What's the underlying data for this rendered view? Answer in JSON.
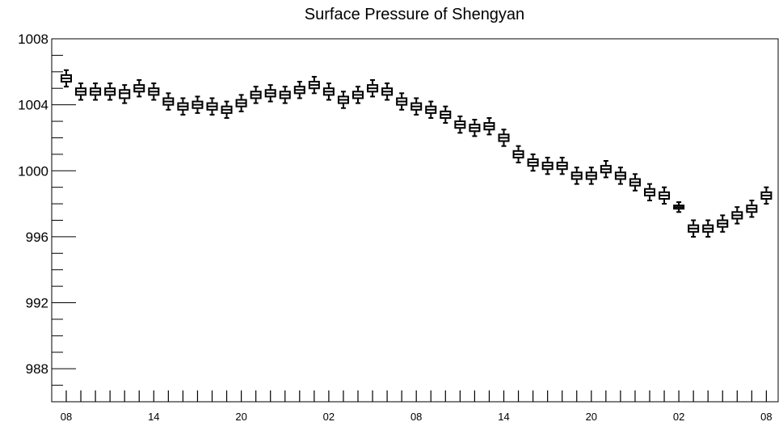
{
  "chart_data": {
    "type": "boxplot",
    "title": "Surface Pressure of Shengyan",
    "xlabel": "",
    "ylabel": "",
    "ylim": [
      986,
      1008
    ],
    "yticks": [
      988,
      992,
      996,
      1000,
      1004,
      1008
    ],
    "xtick_labels": [
      "08",
      "14",
      "20",
      "02",
      "08",
      "14",
      "20",
      "02",
      "08"
    ],
    "xtick_label_steps": [
      0,
      6,
      12,
      18,
      24,
      30,
      36,
      42,
      48
    ],
    "grid": false,
    "series": [
      {
        "medians": [
          1005.6,
          1004.8,
          1004.8,
          1004.8,
          1004.7,
          1005.0,
          1004.8,
          1004.2,
          1003.9,
          1004.0,
          1003.9,
          1003.7,
          1004.1,
          1004.6,
          1004.7,
          1004.6,
          1004.9,
          1005.2,
          1004.8,
          1004.3,
          1004.6,
          1005.0,
          1004.8,
          1004.2,
          1003.9,
          1003.7,
          1003.4,
          1002.8,
          1002.6,
          1002.7,
          1002.0,
          1001.0,
          1000.5,
          1000.3,
          1000.3,
          999.7,
          999.7,
          1000.1,
          999.7,
          999.3,
          998.7,
          998.5,
          997.8,
          996.5,
          996.5,
          996.8,
          997.3,
          997.7,
          998.5
        ],
        "q1": [
          1005.4,
          1004.6,
          1004.6,
          1004.6,
          1004.4,
          1004.8,
          1004.6,
          1004.0,
          1003.7,
          1003.8,
          1003.7,
          1003.5,
          1003.9,
          1004.4,
          1004.5,
          1004.4,
          1004.7,
          1005.0,
          1004.6,
          1004.1,
          1004.4,
          1004.8,
          1004.6,
          1004.0,
          1003.7,
          1003.5,
          1003.2,
          1002.6,
          1002.4,
          1002.5,
          1001.8,
          1000.8,
          1000.3,
          1000.1,
          1000.1,
          999.5,
          999.5,
          999.9,
          999.5,
          999.1,
          998.5,
          998.3,
          997.7,
          996.3,
          996.3,
          996.6,
          997.1,
          997.5,
          998.3
        ],
        "q3": [
          1005.8,
          1005.0,
          1005.0,
          1005.0,
          1004.9,
          1005.2,
          1005.0,
          1004.4,
          1004.1,
          1004.2,
          1004.1,
          1003.9,
          1004.3,
          1004.8,
          1004.9,
          1004.8,
          1005.1,
          1005.4,
          1005.0,
          1004.5,
          1004.8,
          1005.2,
          1005.0,
          1004.4,
          1004.1,
          1003.9,
          1003.6,
          1003.0,
          1002.8,
          1002.9,
          1002.2,
          1001.2,
          1000.7,
          1000.5,
          1000.5,
          999.9,
          999.9,
          1000.3,
          999.9,
          999.5,
          998.9,
          998.7,
          997.9,
          996.7,
          996.7,
          997.0,
          997.5,
          997.9,
          998.7
        ],
        "low": [
          1005.1,
          1004.3,
          1004.3,
          1004.3,
          1004.1,
          1004.5,
          1004.3,
          1003.7,
          1003.4,
          1003.5,
          1003.4,
          1003.2,
          1003.6,
          1004.1,
          1004.2,
          1004.1,
          1004.4,
          1004.7,
          1004.3,
          1003.8,
          1004.1,
          1004.5,
          1004.3,
          1003.7,
          1003.4,
          1003.2,
          1002.9,
          1002.3,
          1002.1,
          1002.2,
          1001.5,
          1000.5,
          1000.0,
          999.8,
          999.8,
          999.2,
          999.2,
          999.6,
          999.2,
          998.8,
          998.2,
          998.0,
          997.5,
          996.0,
          996.0,
          996.3,
          996.8,
          997.2,
          998.0
        ],
        "high": [
          1006.1,
          1005.3,
          1005.3,
          1005.3,
          1005.2,
          1005.5,
          1005.3,
          1004.7,
          1004.4,
          1004.5,
          1004.4,
          1004.2,
          1004.6,
          1005.1,
          1005.2,
          1005.1,
          1005.4,
          1005.7,
          1005.3,
          1004.8,
          1005.1,
          1005.5,
          1005.3,
          1004.7,
          1004.4,
          1004.2,
          1003.9,
          1003.3,
          1003.1,
          1003.2,
          1002.5,
          1001.5,
          1001.0,
          1000.8,
          1000.8,
          1000.2,
          1000.2,
          1000.6,
          1000.2,
          999.8,
          999.2,
          999.0,
          998.1,
          997.0,
          997.0,
          997.3,
          997.8,
          998.2,
          999.0
        ]
      }
    ]
  }
}
